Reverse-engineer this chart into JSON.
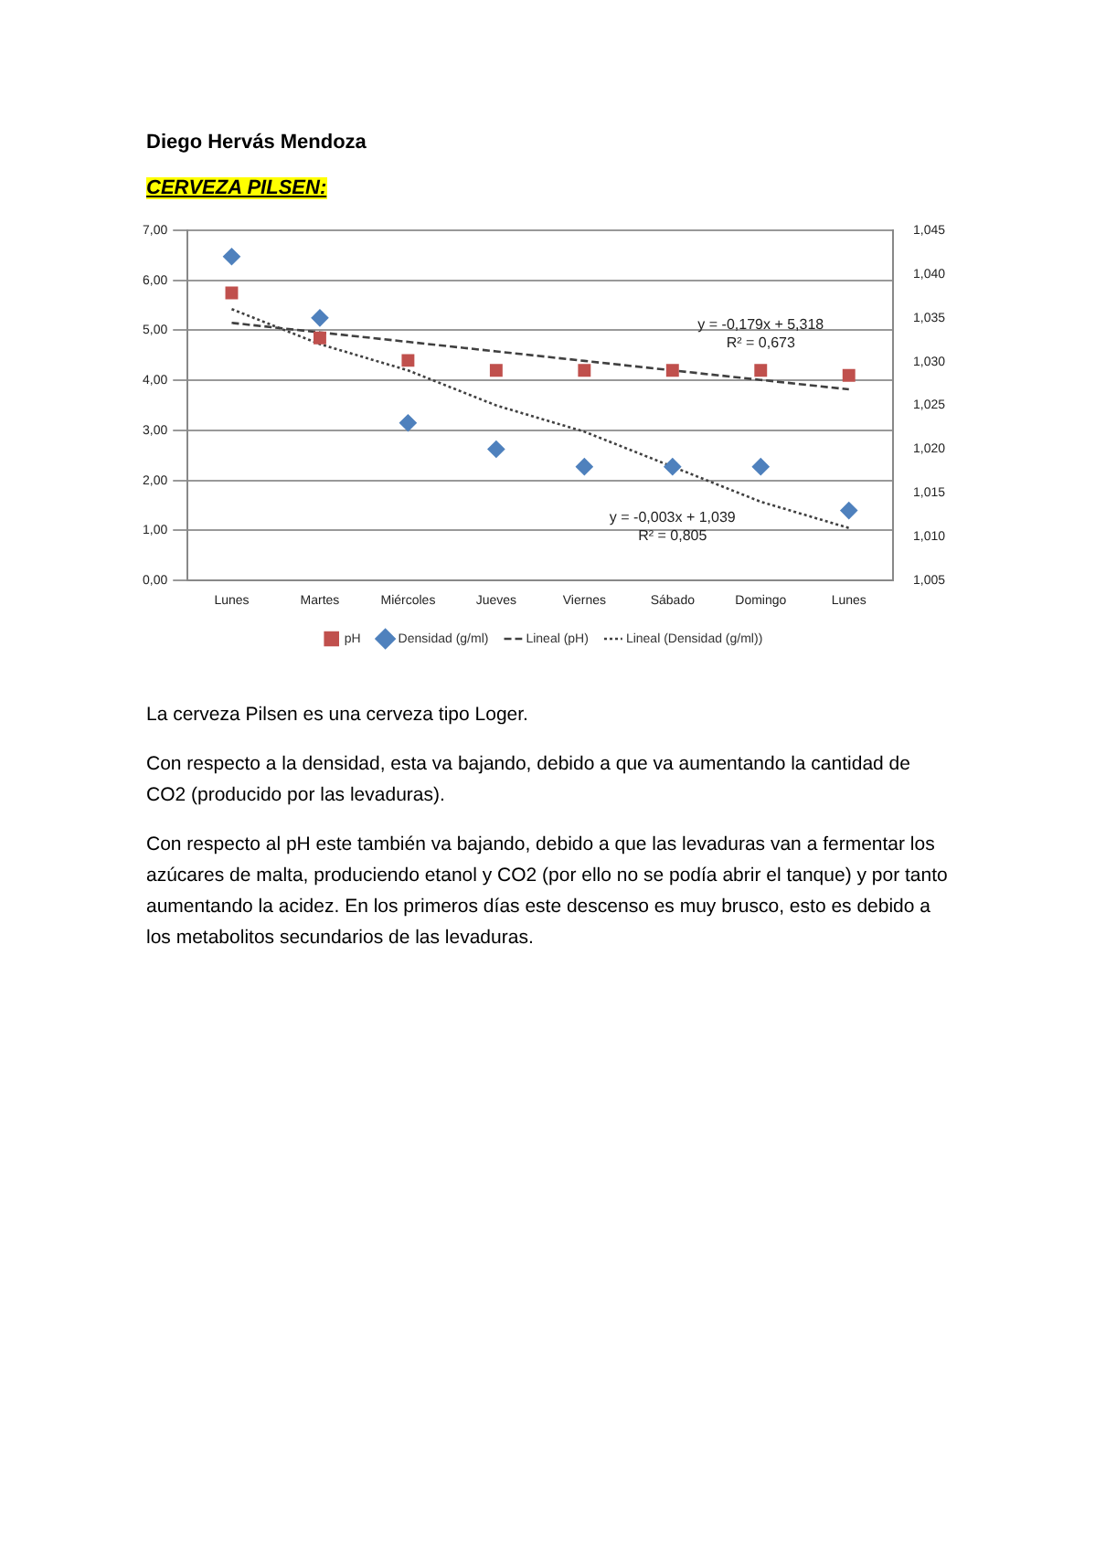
{
  "chart_data": {
    "type": "scatter",
    "title": "CERVEZA PILSEN:",
    "subtitle": "Diego Hervás Mendoza",
    "categories": [
      "Lunes",
      "Martes",
      "Miércoles",
      "Jueves",
      "Viernes",
      "Sábado",
      "Domingo",
      "Lunes"
    ],
    "series": [
      {
        "name": "pH",
        "marker": "square",
        "color": "#c0504d",
        "values": [
          5.75,
          4.85,
          4.4,
          4.2,
          4.2,
          4.2,
          4.2,
          4.1
        ]
      },
      {
        "name": "Densidad (g/ml)",
        "marker": "diamond",
        "color": "#4f81bd",
        "axis": "y2",
        "values": [
          1.042,
          1.035,
          1.023,
          1.02,
          1.018,
          1.018,
          1.018,
          1.013
        ]
      },
      {
        "name": "Lineal (pH)",
        "type": "line",
        "marker": "none",
        "line_style": "dashed",
        "color": "#404040",
        "values": [
          5.15,
          4.96,
          4.77,
          4.58,
          4.39,
          4.2,
          4.01,
          3.82
        ]
      },
      {
        "name": "Lineal (Densidad (g/ml))",
        "type": "line",
        "marker": "none",
        "line_style": "dotted",
        "color": "#404040",
        "axis": "y2",
        "values": [
          1.036,
          1.032,
          1.029,
          1.025,
          1.022,
          1.018,
          1.014,
          1.011
        ]
      }
    ],
    "ylim": [
      0,
      7
    ],
    "yticks": [
      {
        "value": 0,
        "label": "0,00"
      },
      {
        "value": 1,
        "label": "1,00"
      },
      {
        "value": 2,
        "label": "2,00"
      },
      {
        "value": 3,
        "label": "3,00"
      },
      {
        "value": 4,
        "label": "4,00"
      },
      {
        "value": 5,
        "label": "5,00"
      },
      {
        "value": 6,
        "label": "6,00"
      },
      {
        "value": 7,
        "label": "7,00"
      }
    ],
    "y2lim": [
      1.005,
      1.045
    ],
    "y2ticks": [
      {
        "value": 1.005,
        "label": "1,005"
      },
      {
        "value": 1.01,
        "label": "1,010"
      },
      {
        "value": 1.015,
        "label": "1,015"
      },
      {
        "value": 1.02,
        "label": "1,020"
      },
      {
        "value": 1.025,
        "label": "1,025"
      },
      {
        "value": 1.03,
        "label": "1,030"
      },
      {
        "value": 1.035,
        "label": "1,035"
      },
      {
        "value": 1.04,
        "label": "1,040"
      },
      {
        "value": 1.045,
        "label": "1,045"
      }
    ],
    "grid": "y",
    "legend": "bottom",
    "annotations": [
      "y = -0,179x + 5,318",
      "R² = 0,673",
      "y = -0,003x + 1,039",
      "R² = 0,805",
      "La cerveza Pilsen es una cerveza tipo Loger.",
      "Con respecto a la densidad, esta va bajando, debido a que va aumentando la cantidad de CO2 (producido por las levaduras).",
      "Con respecto al pH este también va bajando, debido a que las levaduras van a fermentar los azúcares de malta, produciendo etanol y CO2 (por ello no se podía abrir el tanque) y por tanto aumentando la acidez. En los primeros días este descenso es muy brusco, esto es debido a los metabolitos secundarios de las levaduras."
    ]
  }
}
